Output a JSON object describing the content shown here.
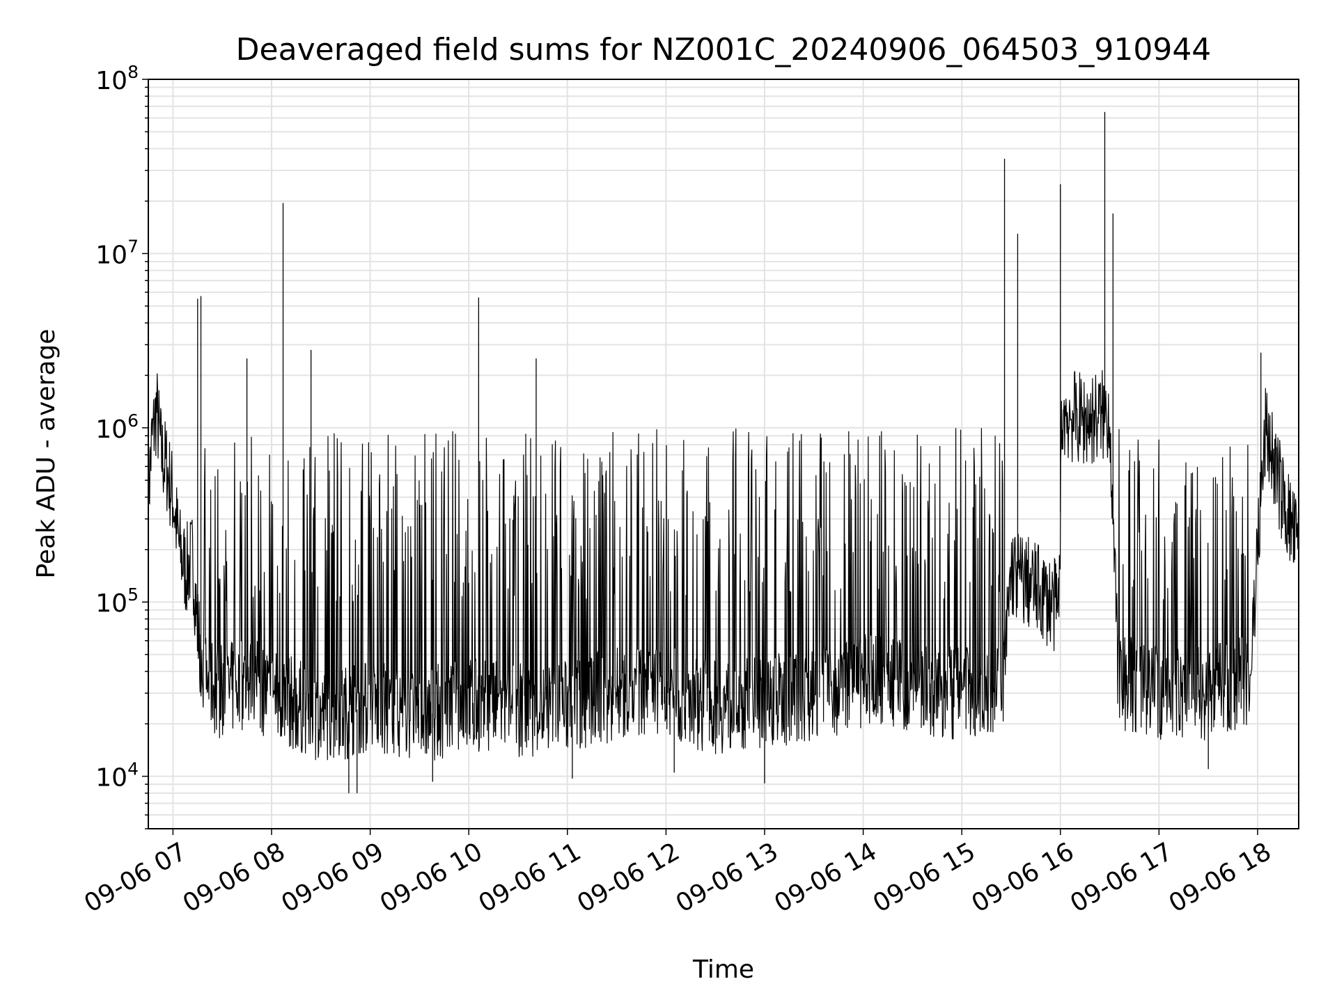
{
  "chart_data": {
    "type": "line",
    "title": "Deaveraged field sums for NZ001C_20240906_064503_910944",
    "xlabel": "Time",
    "ylabel": "Peak ADU - average",
    "yscale": "log",
    "ylim": [
      5000,
      100000000
    ],
    "xlim": [
      "2024-09-06 06:45",
      "2024-09-06 18:25"
    ],
    "grid": true,
    "line_color": "#000000",
    "x_ticks": [
      {
        "time": "2024-09-06 07:00",
        "label": "09-06 07"
      },
      {
        "time": "2024-09-06 08:00",
        "label": "09-06 08"
      },
      {
        "time": "2024-09-06 09:00",
        "label": "09-06 09"
      },
      {
        "time": "2024-09-06 10:00",
        "label": "09-06 10"
      },
      {
        "time": "2024-09-06 11:00",
        "label": "09-06 11"
      },
      {
        "time": "2024-09-06 12:00",
        "label": "09-06 12"
      },
      {
        "time": "2024-09-06 13:00",
        "label": "09-06 13"
      },
      {
        "time": "2024-09-06 14:00",
        "label": "09-06 14"
      },
      {
        "time": "2024-09-06 15:00",
        "label": "09-06 15"
      },
      {
        "time": "2024-09-06 16:00",
        "label": "09-06 16"
      },
      {
        "time": "2024-09-06 17:00",
        "label": "09-06 17"
      },
      {
        "time": "2024-09-06 18:00",
        "label": "09-06 18"
      }
    ],
    "y_ticks": [
      {
        "value": 10000,
        "base": "10",
        "exp": "4"
      },
      {
        "value": 100000,
        "base": "10",
        "exp": "5"
      },
      {
        "value": 1000000,
        "base": "10",
        "exp": "6"
      },
      {
        "value": 10000000,
        "base": "10",
        "exp": "7"
      },
      {
        "value": 100000000,
        "base": "10",
        "exp": "8"
      }
    ],
    "series": [
      {
        "points": [
          [
            "2024-09-06 06:45",
            400000
          ],
          [
            "2024-09-06 06:47",
            800000
          ],
          [
            "2024-09-06 06:50",
            1300000
          ],
          [
            "2024-09-06 06:53",
            700000
          ],
          [
            "2024-09-06 06:56",
            600000
          ],
          [
            "2024-09-06 07:00",
            400000
          ],
          [
            "2024-09-06 07:04",
            200000
          ],
          [
            "2024-09-06 07:08",
            150000
          ],
          [
            "2024-09-06 07:12",
            180000
          ],
          [
            "2024-09-06 07:15",
            70000
          ],
          [
            "2024-09-06 07:20",
            35000
          ],
          [
            "2024-09-06 07:30",
            30000
          ],
          [
            "2024-09-06 07:45",
            35000
          ],
          [
            "2024-09-06 08:00",
            30000
          ],
          [
            "2024-09-06 08:30",
            22000
          ],
          [
            "2024-09-06 09:00",
            25000
          ],
          [
            "2024-09-06 09:30",
            22000
          ],
          [
            "2024-09-06 10:00",
            26000
          ],
          [
            "2024-09-06 10:30",
            24000
          ],
          [
            "2024-09-06 11:00",
            25000
          ],
          [
            "2024-09-06 11:30",
            30000
          ],
          [
            "2024-09-06 11:55",
            32000
          ],
          [
            "2024-09-06 12:00",
            30000
          ],
          [
            "2024-09-06 12:30",
            25000
          ],
          [
            "2024-09-06 13:00",
            27000
          ],
          [
            "2024-09-06 13:30",
            30000
          ],
          [
            "2024-09-06 14:00",
            35000
          ],
          [
            "2024-09-06 14:30",
            33000
          ],
          [
            "2024-09-06 15:00",
            30000
          ],
          [
            "2024-09-06 15:25",
            35000
          ],
          [
            "2024-09-06 15:30",
            150000
          ],
          [
            "2024-09-06 15:45",
            120000
          ],
          [
            "2024-09-06 15:59",
            90000
          ],
          [
            "2024-09-06 16:01",
            1200000
          ],
          [
            "2024-09-06 16:15",
            1100000
          ],
          [
            "2024-09-06 16:30",
            1200000
          ],
          [
            "2024-09-06 16:35",
            35000
          ],
          [
            "2024-09-06 17:00",
            30000
          ],
          [
            "2024-09-06 17:30",
            30000
          ],
          [
            "2024-09-06 17:55",
            35000
          ],
          [
            "2024-09-06 18:00",
            200000
          ],
          [
            "2024-09-06 18:05",
            1000000
          ],
          [
            "2024-09-06 18:15",
            400000
          ],
          [
            "2024-09-06 18:25",
            200000
          ]
        ],
        "spikes": [
          [
            "2024-09-06 07:15",
            5500000
          ],
          [
            "2024-09-06 07:17",
            5700000
          ],
          [
            "2024-09-06 07:45",
            2500000
          ],
          [
            "2024-09-06 08:07",
            19500000
          ],
          [
            "2024-09-06 08:24",
            2800000
          ],
          [
            "2024-09-06 10:06",
            5600000
          ],
          [
            "2024-09-06 10:41",
            2500000
          ],
          [
            "2024-09-06 15:26",
            35000000
          ],
          [
            "2024-09-06 15:34",
            13000000
          ],
          [
            "2024-09-06 16:00",
            25000000
          ],
          [
            "2024-09-06 16:27",
            65000000
          ],
          [
            "2024-09-06 16:32",
            17000000
          ],
          [
            "2024-09-06 18:02",
            2700000
          ]
        ],
        "dips": [
          [
            "2024-09-06 08:47",
            8000
          ],
          [
            "2024-09-06 08:52",
            8000
          ],
          [
            "2024-09-06 09:38",
            9300
          ],
          [
            "2024-09-06 11:03",
            9700
          ],
          [
            "2024-09-06 13:00",
            9100
          ],
          [
            "2024-09-06 17:30",
            11000
          ],
          [
            "2024-09-06 12:05",
            10500
          ]
        ]
      }
    ]
  }
}
